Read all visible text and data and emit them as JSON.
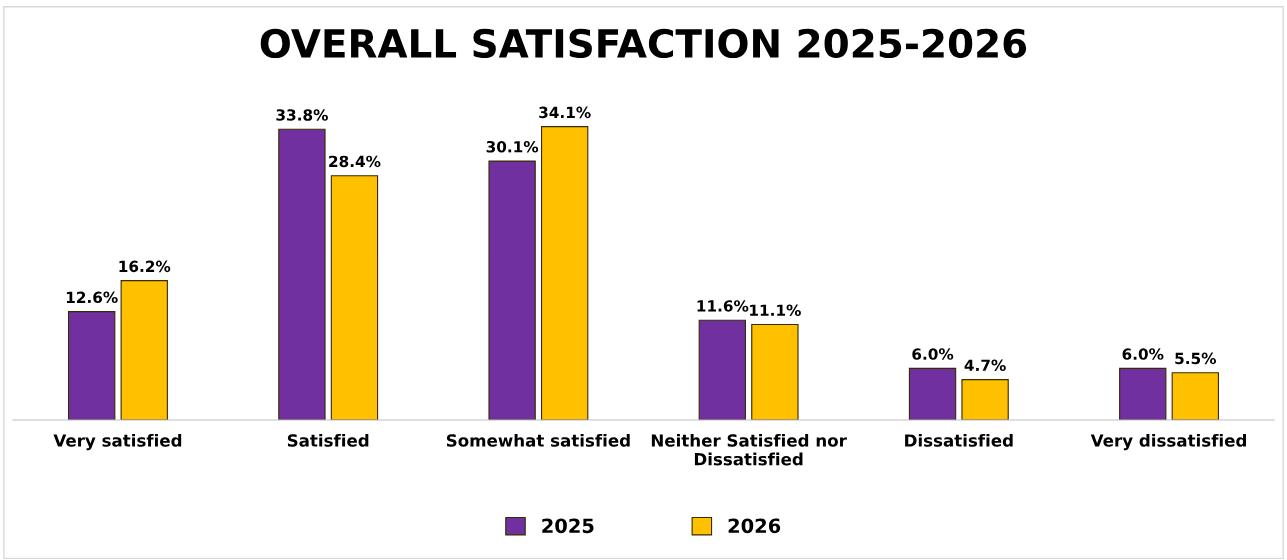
{
  "chart_data": {
    "type": "bar",
    "title": "OVERALL SATISFACTION 2025-2026",
    "categories": [
      "Very satisfied",
      "Satisfied",
      "Somewhat satisfied",
      "Neither Satisfied nor\nDissatisfied",
      "Dissatisfied",
      "Very dissatisfied"
    ],
    "series": [
      {
        "name": "2025",
        "color": "#7030a0",
        "values": [
          12.6,
          33.8,
          30.1,
          11.6,
          6.0,
          6.0
        ],
        "value_labels": [
          "12.6%",
          "33.8%",
          "30.1%",
          "11.6%",
          "6.0%",
          "6.0%"
        ]
      },
      {
        "name": "2026",
        "color": "#ffc000",
        "values": [
          16.2,
          28.4,
          34.1,
          11.1,
          4.7,
          5.5
        ],
        "value_labels": [
          "16.2%",
          "28.4%",
          "34.1%",
          "11.1%",
          "4.7%",
          "5.5%"
        ]
      }
    ],
    "legend": "bottom"
  }
}
